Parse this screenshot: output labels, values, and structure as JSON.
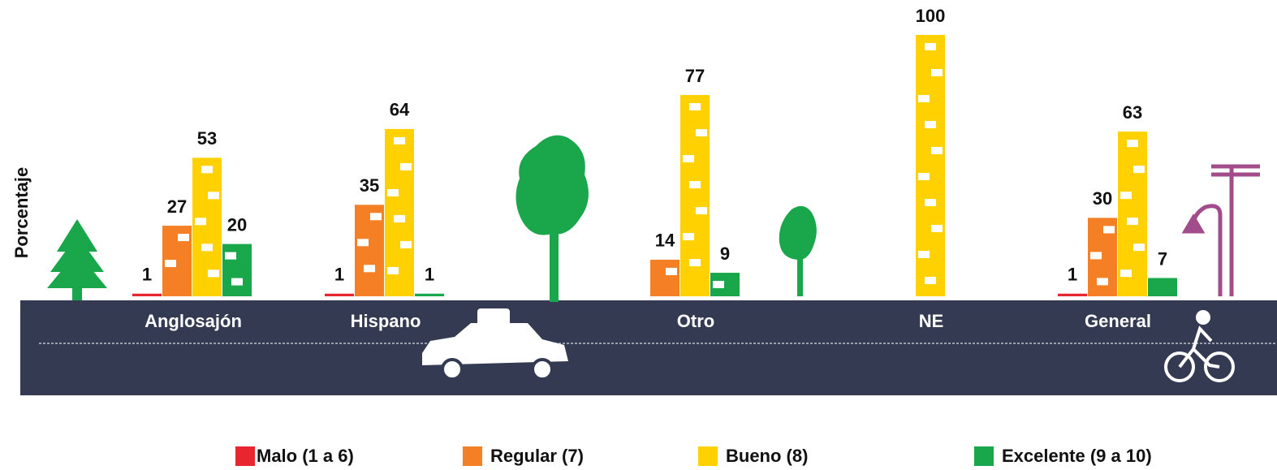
{
  "chart_data": {
    "type": "bar",
    "y_label": "Porcentaje",
    "categories": [
      "Anglosajón",
      "Hispano",
      "Otro",
      "NE",
      "General"
    ],
    "series": [
      {
        "name": "Malo (1 a 6)",
        "color": "#e8262f",
        "values": [
          1,
          1,
          null,
          null,
          1
        ]
      },
      {
        "name": "Regular (7)",
        "color": "#f47f24",
        "values": [
          27,
          35,
          14,
          null,
          30
        ]
      },
      {
        "name": "Bueno (8)",
        "color": "#ffd100",
        "values": [
          53,
          64,
          77,
          100,
          63
        ]
      },
      {
        "name": "Excelente (9 a 10)",
        "color": "#1aa64a",
        "values": [
          20,
          1,
          9,
          null,
          7
        ]
      }
    ],
    "ylim": [
      0,
      100
    ]
  }
}
